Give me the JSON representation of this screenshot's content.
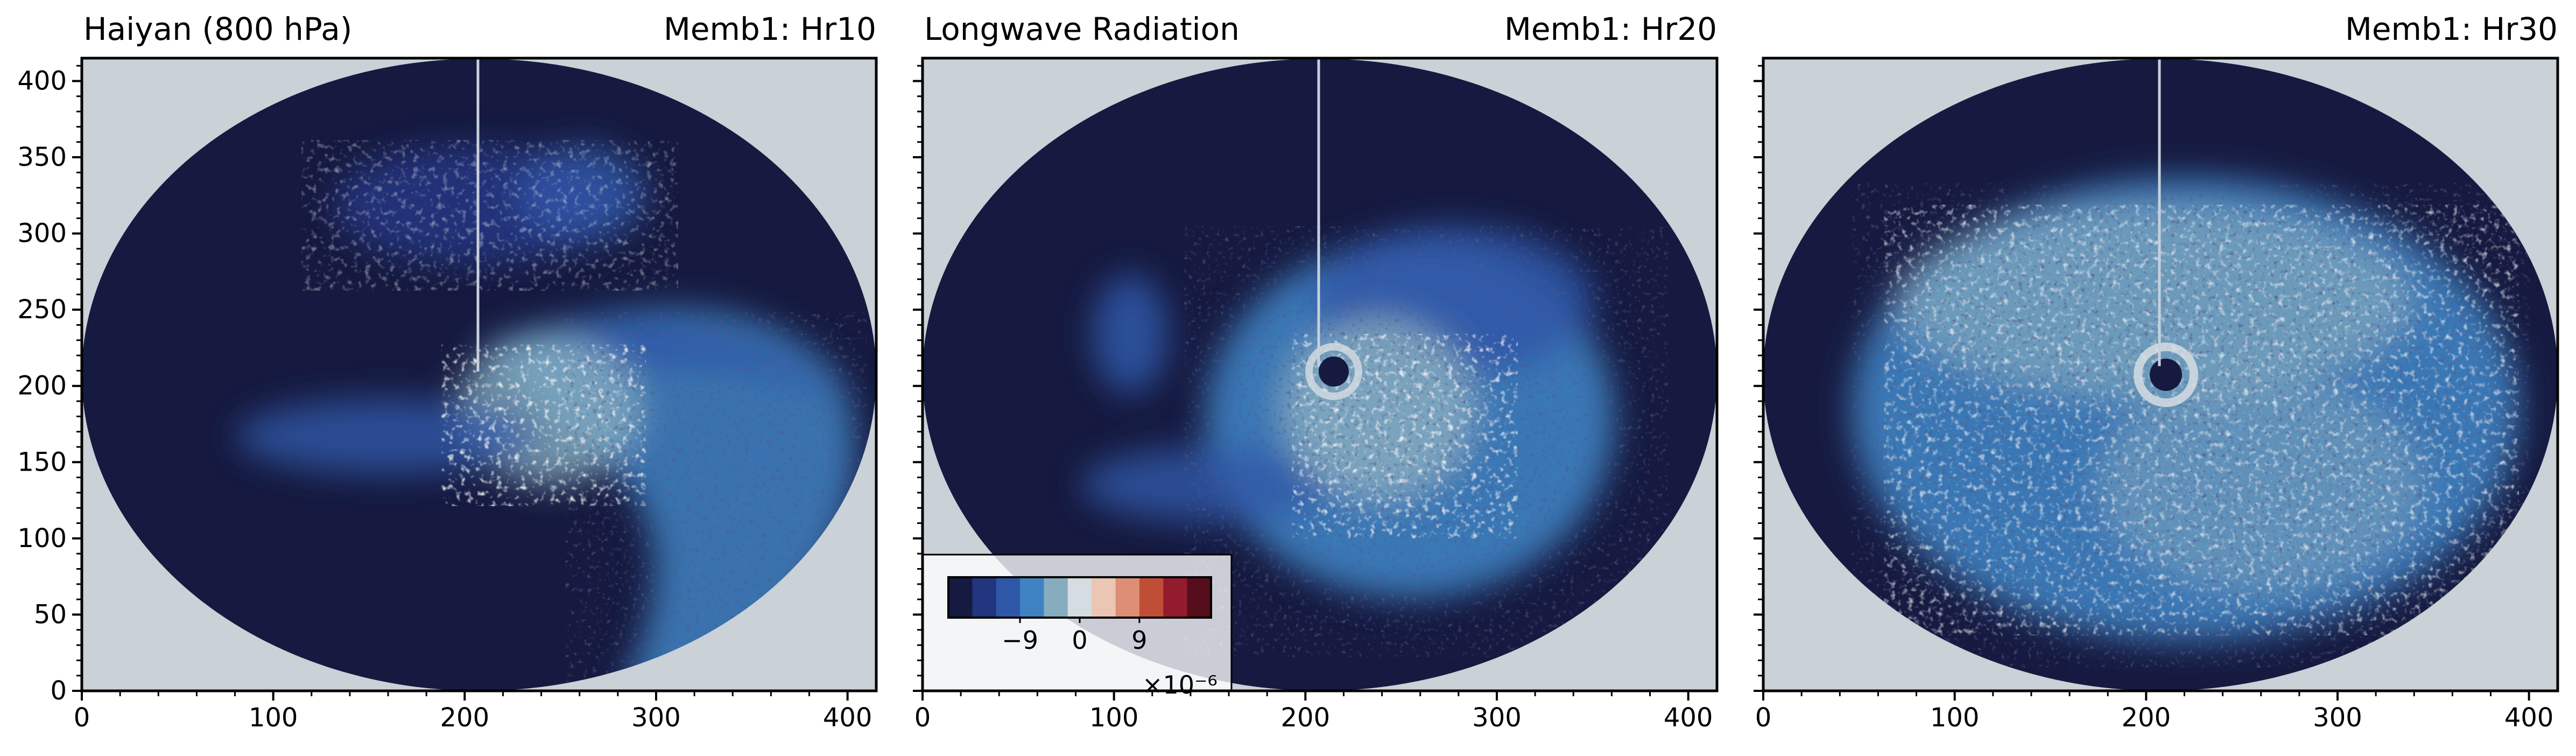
{
  "figure": {
    "title_left": "Haiyan (800 hPa)",
    "title_middle": "Longwave Radiation"
  },
  "colorbar": {
    "tick_labels": [
      "−9",
      "0",
      "9"
    ],
    "multiplier": "×10⁻⁶",
    "colors": [
      "#161a40",
      "#22357e",
      "#2f57a8",
      "#3f82c2",
      "#86acbf",
      "#d6dde2",
      "#ecc6b4",
      "#dd8e74",
      "#c04e36",
      "#931b2e",
      "#560d1c"
    ]
  },
  "chart_data": [
    {
      "type": "heatmap",
      "panel_label": "Memb1: Hr10",
      "xlim": [
        0,
        415
      ],
      "ylim": [
        0,
        415
      ],
      "xticks": [
        0,
        100,
        200,
        300,
        400
      ],
      "yticks": [
        0,
        50,
        100,
        150,
        200,
        250,
        300,
        350,
        400
      ],
      "background_color": "#cad1d7",
      "domain": "ellipse centered at (207, 207) spanning the full grid",
      "storm_center": [
        210,
        200
      ],
      "pattern": "convection mostly south-east and east of center, broad blue spiral band to the east"
    },
    {
      "type": "heatmap",
      "panel_label": "Memb1: Hr20",
      "xlim": [
        0,
        415
      ],
      "ylim": [
        0,
        415
      ],
      "xticks": [
        0,
        100,
        200,
        300,
        400
      ],
      "yticks": [
        0,
        50,
        100,
        150,
        200,
        250,
        300,
        350,
        400
      ],
      "background_color": "#cad1d7",
      "storm_center": [
        210,
        210
      ],
      "pattern": "developing eye near center, warm anomalies south-east of center"
    },
    {
      "type": "heatmap",
      "panel_label": "Memb1: Hr30",
      "xlim": [
        0,
        415
      ],
      "ylim": [
        0,
        415
      ],
      "xticks": [
        0,
        100,
        200,
        300,
        400
      ],
      "yticks": [
        0,
        50,
        100,
        150,
        200,
        250,
        300,
        350,
        400
      ],
      "background_color": "#cad1d7",
      "storm_center": [
        210,
        205
      ],
      "pattern": "well organized spiral with clear eye, broad cyclone field"
    }
  ]
}
